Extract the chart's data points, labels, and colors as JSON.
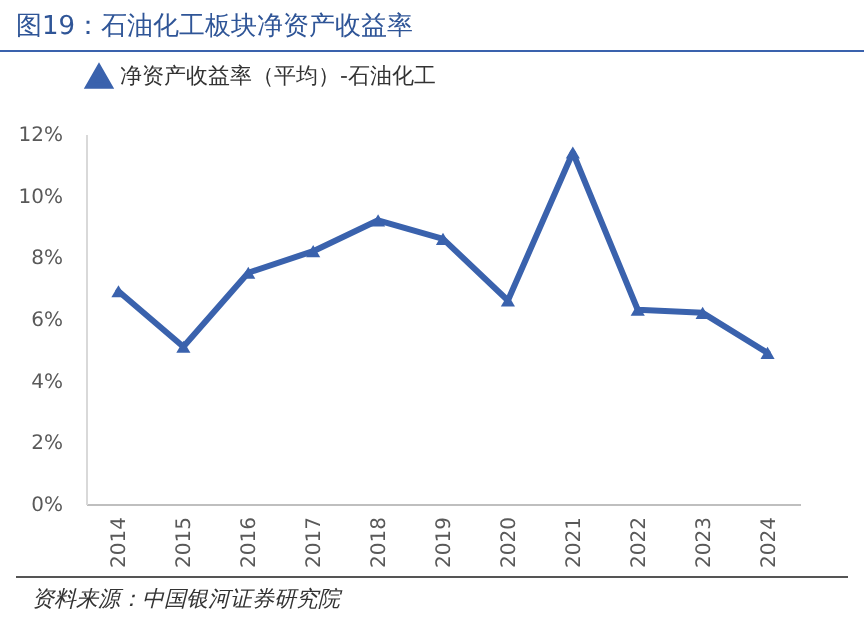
{
  "chart_data": {
    "type": "line",
    "title": "图19：石油化工板块净资产收益率",
    "categories": [
      "2014",
      "2015",
      "2016",
      "2017",
      "2018",
      "2019",
      "2020",
      "2021",
      "2022",
      "2023",
      "2024"
    ],
    "series": [
      {
        "name": "净资产收益率（平均）-石油化工",
        "color": "#3a62ad",
        "values": [
          6.9,
          5.1,
          7.5,
          8.2,
          9.2,
          8.6,
          6.6,
          11.4,
          6.3,
          6.2,
          4.9
        ]
      }
    ],
    "ylim": [
      0,
      12
    ],
    "yticks": [
      {
        "value": 0,
        "label": "0%"
      },
      {
        "value": 2,
        "label": "2%"
      },
      {
        "value": 4,
        "label": "4%"
      },
      {
        "value": 6,
        "label": "6%"
      },
      {
        "value": 8,
        "label": "8%"
      },
      {
        "value": 10,
        "label": "10%"
      },
      {
        "value": 12,
        "label": "12%"
      }
    ],
    "marker": "triangle",
    "line_style": "solid",
    "legend": "top",
    "annotations": [
      "资料来源：中国银河证券研究院"
    ]
  }
}
